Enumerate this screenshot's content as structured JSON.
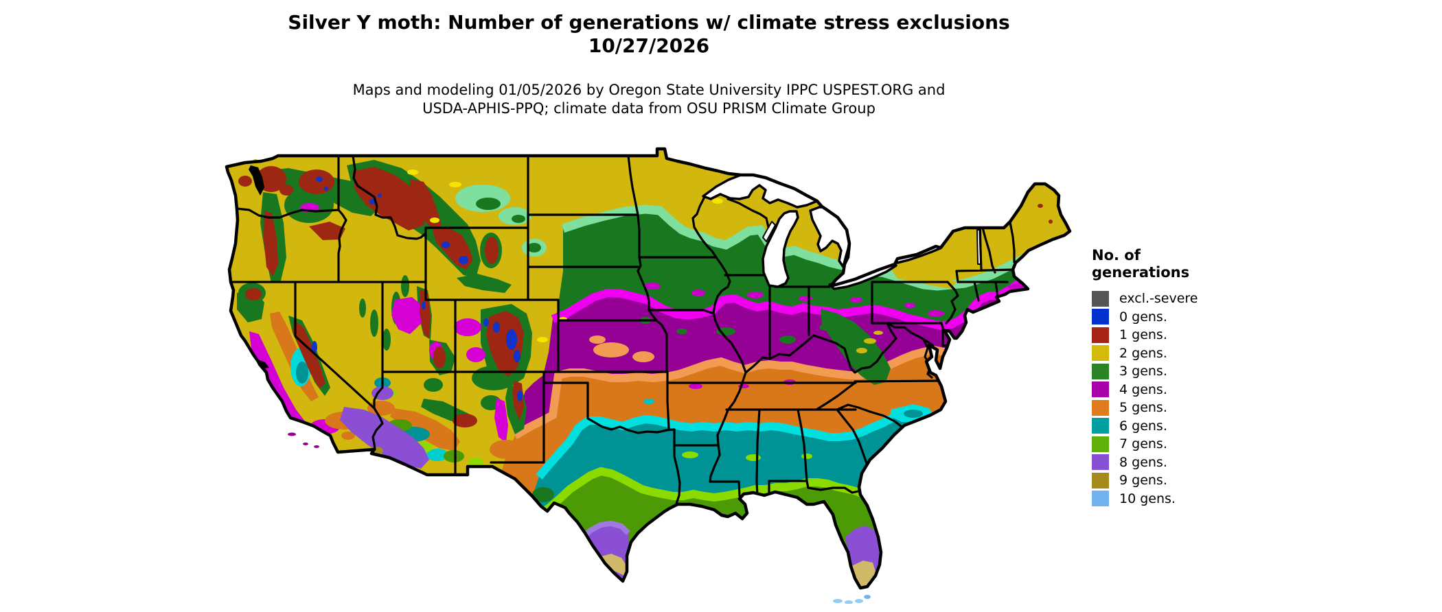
{
  "figure": {
    "title_line1": "Silver Y moth: Number of generations w/ climate stress exclusions",
    "title_line2": "10/27/2026",
    "subtitle_line1": "Maps and modeling 01/05/2026 by Oregon State University IPPC USPEST.ORG and",
    "subtitle_line2": "USDA-APHIS-PPQ; climate data from OSU PRISM Climate Group"
  },
  "legend": {
    "title_line1": "No. of",
    "title_line2": "generations",
    "items": [
      {
        "label": "excl.-severe",
        "color": "#545454"
      },
      {
        "label": "0 gens.",
        "color": "#0231cd"
      },
      {
        "label": "1 gens.",
        "color": "#a82315"
      },
      {
        "label": "2 gens.",
        "color": "#d3ba0b"
      },
      {
        "label": "3 gens.",
        "color": "#2c8327"
      },
      {
        "label": "4 gens.",
        "color": "#a800a8"
      },
      {
        "label": "5 gens.",
        "color": "#df7d1c"
      },
      {
        "label": "6 gens.",
        "color": "#00a0a2"
      },
      {
        "label": "7 gens.",
        "color": "#5fb00a"
      },
      {
        "label": "8 gens.",
        "color": "#8850d2"
      },
      {
        "label": "9 gens.",
        "color": "#a58b1c"
      },
      {
        "label": "10 gens.",
        "color": "#72b2ef"
      }
    ]
  },
  "map": {
    "region": "contiguous United States",
    "band_order_north_to_south": [
      "2 gens.",
      "3 gens.",
      "4 gens.",
      "5 gens.",
      "6 gens.",
      "7 gens.",
      "8 gens.",
      "9 gens.",
      "10 gens."
    ],
    "western_mountain_values": [
      "excl.-severe",
      "0 gens.",
      "1 gens.",
      "2 gens.",
      "3 gens.",
      "4 gens."
    ]
  }
}
